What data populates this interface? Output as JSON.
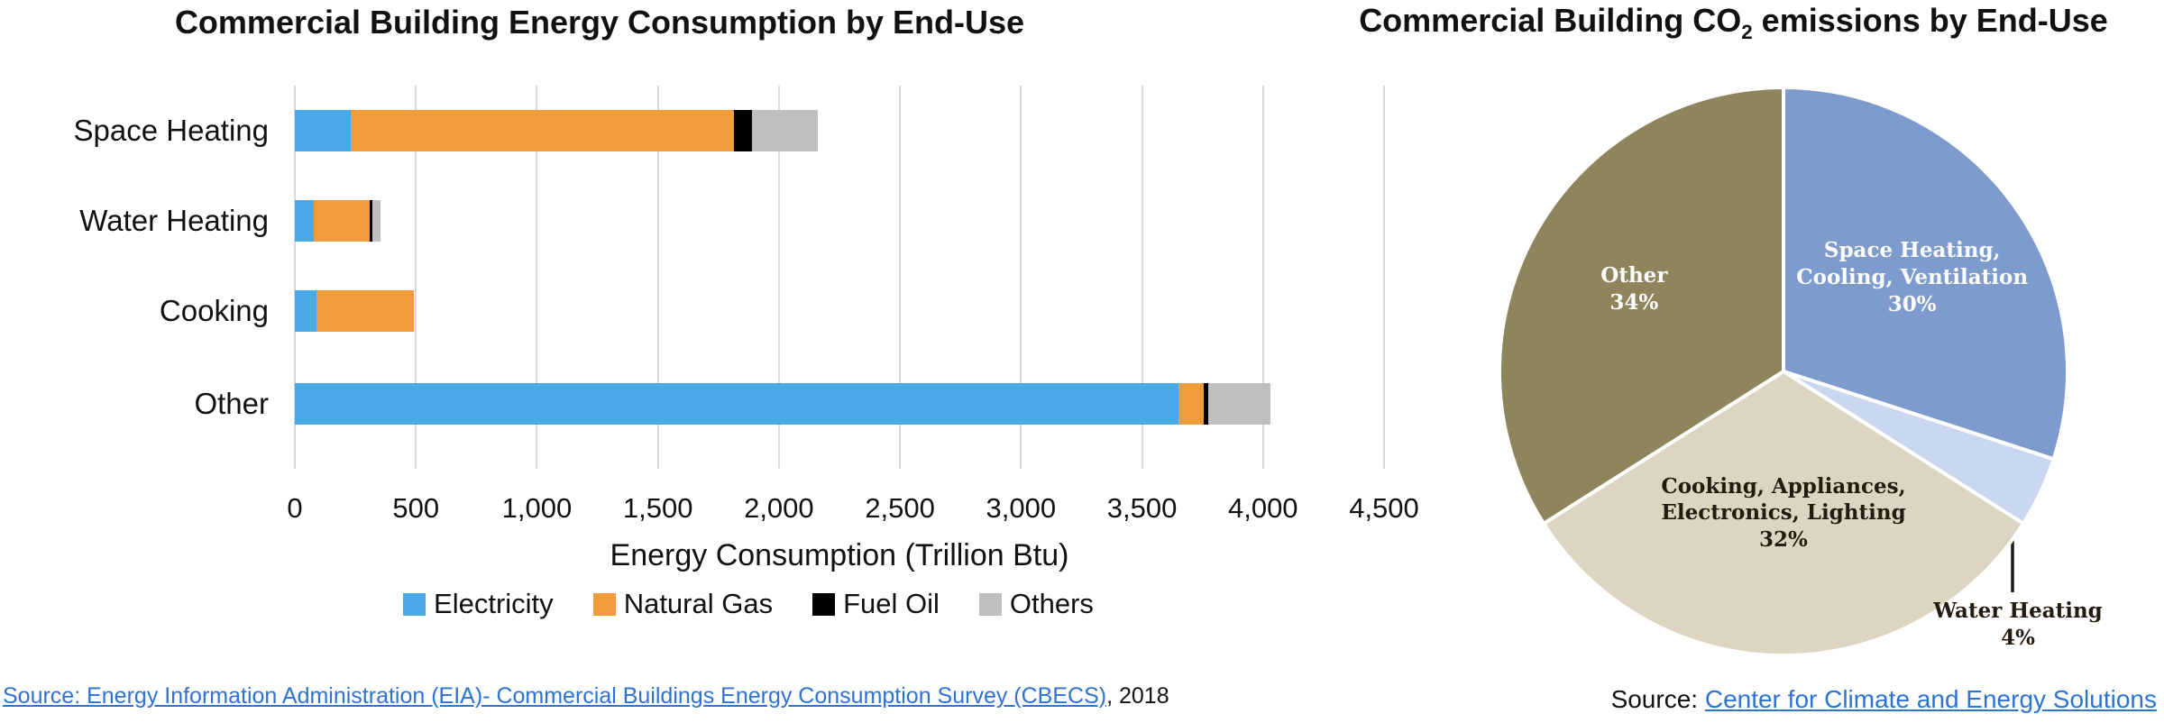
{
  "left_chart": {
    "title": "Commercial Building Energy Consumption by End-Use",
    "source_link": "Source: Energy Information Administration (EIA)- Commercial Buildings Energy Consumption Survey (CBECS)",
    "source_suffix": ", 2018"
  },
  "right_chart": {
    "title_pre": "Commercial Building CO",
    "title_sub": "2",
    "title_post": " emissions by End-Use",
    "source_prefix": "Source: ",
    "source_link": "Center for Climate and Energy Solutions"
  },
  "chart_data": [
    {
      "type": "bar",
      "orientation": "horizontal-stacked",
      "title": "Commercial Building Energy Consumption by End-Use",
      "categories": [
        "Space Heating",
        "Water Heating",
        "Cooking",
        "Other"
      ],
      "series": [
        {
          "name": "Electricity",
          "color": "#49AAE7",
          "values": [
            230,
            80,
            90,
            3650
          ]
        },
        {
          "name": "Natural Gas",
          "color": "#F09C3D",
          "values": [
            1585,
            230,
            400,
            105
          ]
        },
        {
          "name": "Fuel Oil",
          "color": "#000000",
          "values": [
            75,
            10,
            0,
            20
          ]
        },
        {
          "name": "Others",
          "color": "#BFBFBF",
          "values": [
            270,
            35,
            0,
            255
          ]
        }
      ],
      "totals": [
        2160,
        355,
        490,
        4030
      ],
      "xlabel": "Energy Consumption (Trillion Btu)",
      "xlim": [
        0,
        4500
      ],
      "xticks": [
        0,
        500,
        1000,
        1500,
        2000,
        2500,
        3000,
        3500,
        4000,
        4500
      ],
      "xtick_labels": [
        "0",
        "500",
        "1,000",
        "1,500",
        "2,000",
        "2,500",
        "3,000",
        "3,500",
        "4,000",
        "4,500"
      ],
      "grid": "vertical",
      "gridline_color": "#D8D8D8",
      "legend_position": "bottom"
    },
    {
      "type": "pie",
      "title": "Commercial Building CO2 emissions by End-Use",
      "start_angle_deg": 0,
      "direction": "clockwise",
      "slice_border_color": "#FFFFFF",
      "slices": [
        {
          "label": "Space Heating, Cooling, Ventilation",
          "lines": [
            "Space Heating,",
            "Cooling, Ventilation"
          ],
          "pct": 30,
          "pct_label": "30%",
          "color": "#7E9BCD",
          "text_color": "#FFFFFF",
          "label_pos": "inside",
          "label_r": 0.56
        },
        {
          "label": "Water Heating",
          "lines": [
            "Water Heating"
          ],
          "pct": 4,
          "pct_label": "4%",
          "color": "#C9D7F0",
          "text_color": "#241A10",
          "label_pos": "outside"
        },
        {
          "label": "Cooking, Appliances, Electronics, Lighting",
          "lines": [
            "Cooking, Appliances,",
            "Electronics, Lighting"
          ],
          "pct": 32,
          "pct_label": "32%",
          "color": "#DBD5C1",
          "text_color": "#241A10",
          "label_pos": "inside",
          "label_r": 0.5
        },
        {
          "label": "Other",
          "lines": [
            "Other"
          ],
          "pct": 34,
          "pct_label": "34%",
          "color": "#8F855C",
          "text_color": "#FFFFFF",
          "label_pos": "inside",
          "label_r": 0.6
        }
      ]
    }
  ]
}
